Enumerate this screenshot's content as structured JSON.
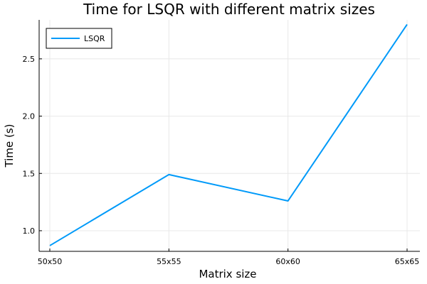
{
  "chart_data": {
    "type": "line",
    "title": "Time for LSQR with different matrix sizes",
    "xlabel": "Matrix size",
    "ylabel": "Time (s)",
    "categories": [
      "50x50",
      "55x55",
      "60x60",
      "65x65"
    ],
    "series": [
      {
        "name": "LSQR",
        "color": "#009af9",
        "values": [
          0.87,
          1.49,
          1.26,
          2.8
        ]
      }
    ],
    "yticks": [
      1.0,
      1.5,
      2.0,
      2.5
    ],
    "ytick_labels": [
      "1.0",
      "1.5",
      "2.0",
      "2.5"
    ],
    "ylim": [
      0.82,
      2.84
    ],
    "grid": true,
    "legend_position": "top-left"
  }
}
